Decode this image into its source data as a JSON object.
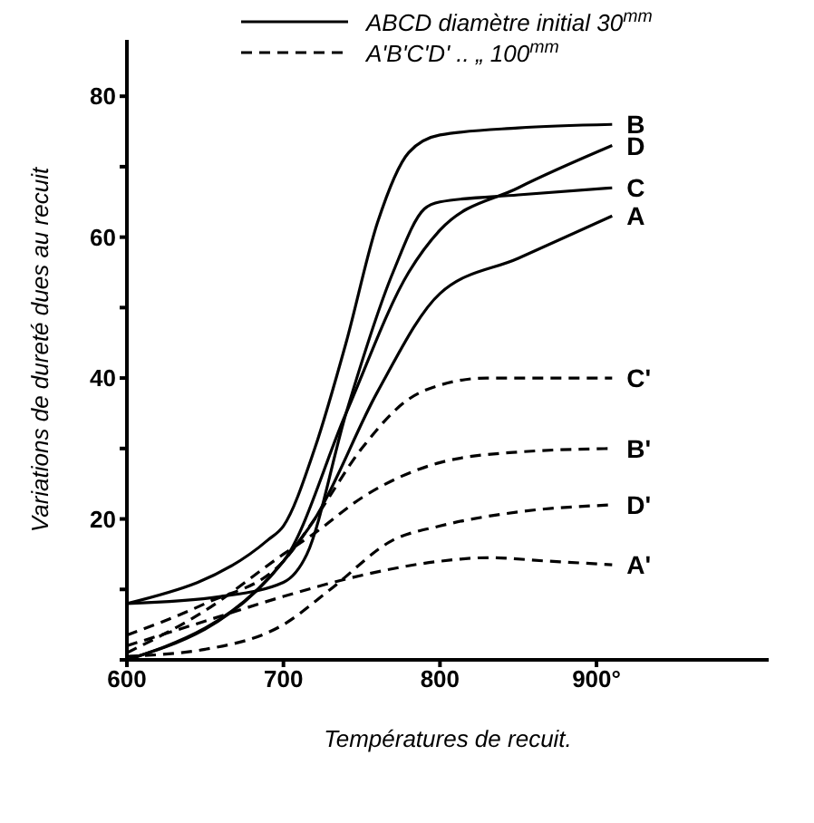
{
  "chart_data": {
    "type": "line",
    "xlabel": "Températures de recuit.",
    "ylabel": "Variations de dureté dues au recuit",
    "annotations": [
      "ABCD diamètre initial 30$^{mm}$",
      "A'B'C'D'   ..        „  100$^{mm}$"
    ],
    "xlim": [
      600,
      1010
    ],
    "xticks": [
      600,
      700,
      800,
      {
        "value": 900,
        "label": "900°"
      }
    ],
    "ylim": [
      0,
      88
    ],
    "yticks": [
      {
        "value": 0,
        "label": null
      },
      {
        "value": 10,
        "label": null
      },
      20,
      {
        "value": 30,
        "label": null
      },
      40,
      {
        "value": 50,
        "label": null
      },
      60,
      {
        "value": 70,
        "label": null
      },
      80
    ],
    "grid": false,
    "legend": "top right",
    "marker": "none",
    "series": [
      {
        "name": "B",
        "color": "#000000",
        "line_style": "solid",
        "x": [
          600,
          690,
          700,
          720,
          740,
          760,
          780,
          800,
          850,
          910
        ],
        "values": [
          8,
          17,
          19,
          30,
          45,
          62,
          72,
          74.5,
          75.5,
          76
        ]
      },
      {
        "name": "D",
        "color": "#000000",
        "line_style": "solid",
        "x": [
          600,
          700,
          740,
          780,
          800,
          850,
          910
        ],
        "values": [
          0,
          14,
          35,
          55,
          61,
          67,
          73
        ]
      },
      {
        "name": "C",
        "color": "#000000",
        "line_style": "solid",
        "x": [
          600,
          660,
          700,
          715,
          740,
          770,
          790,
          800,
          850,
          910
        ],
        "values": [
          8,
          9,
          11,
          15,
          35,
          55,
          64,
          65,
          66,
          67
        ]
      },
      {
        "name": "A",
        "color": "#000000",
        "line_style": "solid",
        "x": [
          600,
          700,
          720,
          760,
          800,
          850,
          910
        ],
        "values": [
          0,
          14,
          20,
          38,
          52,
          57,
          63
        ]
      },
      {
        "name": "C'",
        "color": "#000000",
        "line_style": "dashed",
        "x": [
          600,
          650,
          700,
          720,
          750,
          780,
          800,
          830,
          910
        ],
        "values": [
          3.5,
          8,
          14,
          20,
          30,
          37,
          39,
          40,
          40
        ]
      },
      {
        "name": "B'",
        "color": "#000000",
        "line_style": "dashed",
        "x": [
          600,
          650,
          700,
          720,
          750,
          800,
          850,
          910
        ],
        "values": [
          1,
          7,
          15,
          18,
          23,
          28,
          29.5,
          30
        ]
      },
      {
        "name": "D'",
        "color": "#000000",
        "line_style": "dashed",
        "x": [
          600,
          650,
          700,
          730,
          770,
          800,
          850,
          910
        ],
        "values": [
          0.5,
          1.5,
          5,
          10,
          17,
          19,
          21,
          22
        ]
      },
      {
        "name": "A'",
        "color": "#000000",
        "line_style": "dashed",
        "x": [
          600,
          650,
          700,
          750,
          800,
          830,
          870,
          910
        ],
        "values": [
          2,
          5.5,
          9,
          12,
          14,
          14.5,
          14,
          13.5
        ]
      }
    ]
  }
}
